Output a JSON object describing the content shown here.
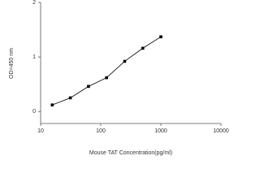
{
  "chart_data": {
    "type": "line",
    "xlabel": "Mouse TAT Concentration(pg/ml)",
    "ylabel": "OD=450 nm",
    "x": [
      15.6,
      31.2,
      62.5,
      125,
      250,
      500,
      1000
    ],
    "series": [
      {
        "color": "#000000",
        "values": [
          0.12,
          0.25,
          0.46,
          0.62,
          0.92,
          1.16,
          1.37
        ]
      }
    ],
    "xlim": [
      10,
      10000
    ],
    "xticks": [
      10,
      100,
      1000,
      10000
    ],
    "xscale": "log",
    "ylim": [
      -0.22,
      2
    ],
    "yticks": [
      0,
      1,
      2
    ]
  }
}
